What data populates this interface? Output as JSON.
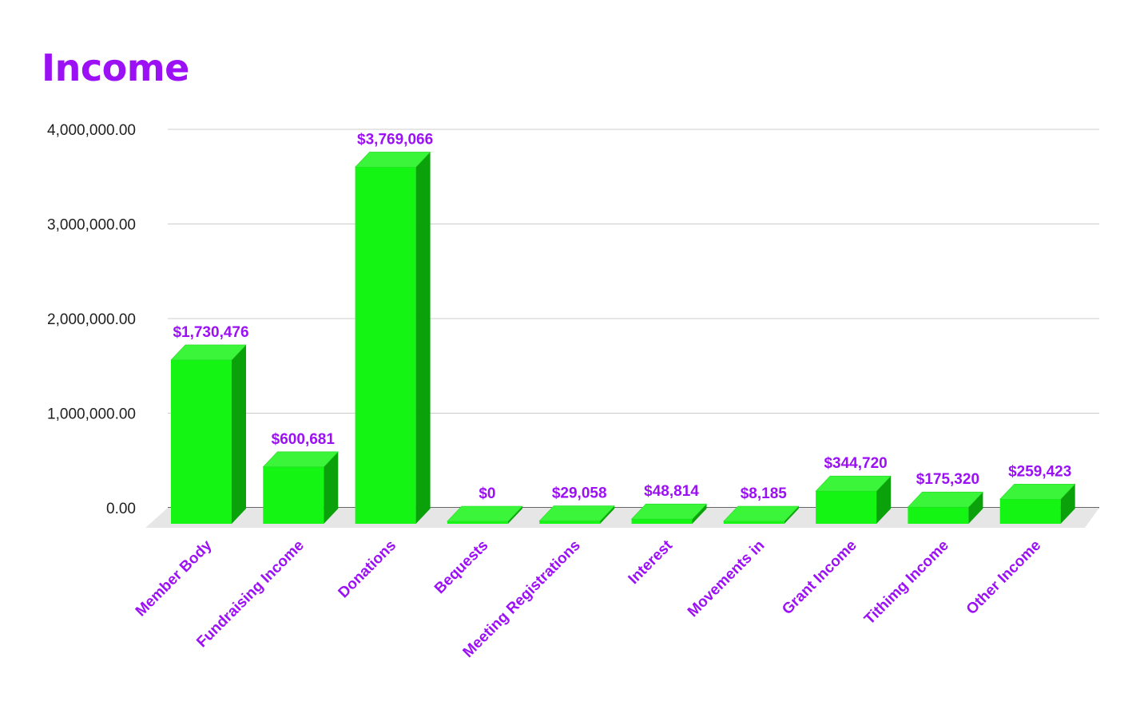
{
  "chart_data": {
    "type": "bar",
    "title": "Income",
    "categories": [
      "Member Body",
      "Fundraising Income",
      "Donations",
      "Bequests",
      "Meeting Registrations",
      "Interest",
      "Movements in",
      "Grant Income",
      "Tithimg Income",
      "Other Income"
    ],
    "values": [
      1730476,
      600681,
      3769066,
      0,
      29058,
      48814,
      8185,
      344720,
      175320,
      259423
    ],
    "data_labels": [
      "$1,730,476",
      "$600,681",
      "$3,769,066",
      "$0",
      "$29,058",
      "$48,814",
      "$8,185",
      "$344,720",
      "$175,320",
      "$259,423"
    ],
    "y_ticks": [
      0,
      1000000,
      2000000,
      3000000,
      4000000
    ],
    "y_tick_labels": [
      "0.00",
      "1,000,000.00",
      "2,000,000.00",
      "3,000,000.00",
      "4,000,000.00"
    ],
    "ylim": [
      0,
      4000000
    ],
    "xlabel": "",
    "ylabel": "",
    "grid": true,
    "legend": "none",
    "colors": {
      "title": "#9b10f5",
      "bar_front": "#14f514",
      "bar_top": "#3af53a",
      "bar_side": "#0aa10a",
      "labels": "#9b10f5",
      "floor": "#e6e6e6",
      "grid": "#cccccc",
      "axis": "#333333"
    }
  }
}
